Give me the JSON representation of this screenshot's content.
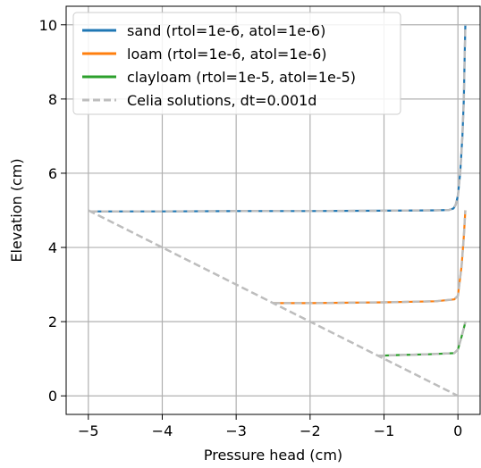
{
  "chart_data": {
    "type": "line",
    "xlabel": "Pressure head (cm)",
    "ylabel": "Elevation (cm)",
    "xlim": [
      -5.3,
      0.3
    ],
    "ylim": [
      -0.5,
      10.5
    ],
    "xticks": [
      -5,
      -4,
      -3,
      -2,
      -1,
      0
    ],
    "yticks": [
      0,
      2,
      4,
      6,
      8,
      10
    ],
    "xtick_labels": [
      "−5",
      "−4",
      "−3",
      "−2",
      "−1",
      "0"
    ],
    "ytick_labels": [
      "0",
      "2",
      "4",
      "6",
      "8",
      "10"
    ],
    "grid": true,
    "legend_position": "top-left",
    "series": [
      {
        "name": "sand (rtol=1e-6, atol=1e-6)",
        "color": "#1f77b4",
        "style": "solid",
        "x": [
          -4.97,
          -4.0,
          -3.0,
          -2.0,
          -1.0,
          -0.3,
          -0.12,
          -0.06,
          -0.03,
          0.0,
          0.03,
          0.06,
          0.08,
          0.09,
          0.1
        ],
        "y": [
          4.97,
          4.97,
          4.98,
          4.98,
          4.99,
          5.0,
          5.01,
          5.05,
          5.15,
          5.4,
          6.0,
          7.0,
          8.0,
          9.0,
          10.0
        ]
      },
      {
        "name": "loam (rtol=1e-6, atol=1e-6)",
        "color": "#ff7f0e",
        "style": "solid",
        "x": [
          -2.5,
          -2.0,
          -1.0,
          -0.3,
          -0.05,
          0.0,
          0.05,
          0.08,
          0.1
        ],
        "y": [
          2.5,
          2.5,
          2.52,
          2.55,
          2.6,
          2.7,
          3.5,
          4.3,
          5.0
        ]
      },
      {
        "name": "clayloam (rtol=1e-5, atol=1e-5)",
        "color": "#2ca02c",
        "style": "solid",
        "x": [
          -1.08,
          -0.8,
          -0.4,
          -0.05,
          0.0,
          0.05,
          0.09,
          0.1
        ],
        "y": [
          1.08,
          1.1,
          1.12,
          1.15,
          1.25,
          1.6,
          1.9,
          2.0
        ]
      },
      {
        "name": "Celia solutions, dt=0.001d",
        "color": "#bdbdbd",
        "style": "dashed",
        "segments": [
          {
            "x": [
              -4.97,
              -4.0,
              -3.0,
              -2.0,
              -1.0,
              -0.3,
              -0.12,
              -0.06,
              -0.03,
              0.0,
              0.03,
              0.06,
              0.08,
              0.09,
              0.1
            ],
            "y": [
              4.97,
              4.97,
              4.98,
              4.98,
              4.99,
              5.0,
              5.01,
              5.05,
              5.15,
              5.4,
              6.0,
              7.0,
              8.0,
              9.0,
              10.0
            ]
          },
          {
            "x": [
              -2.5,
              -2.0,
              -1.0,
              -0.3,
              -0.05,
              0.0,
              0.05,
              0.08,
              0.1
            ],
            "y": [
              2.5,
              2.5,
              2.52,
              2.55,
              2.6,
              2.7,
              3.5,
              4.3,
              5.0
            ]
          },
          {
            "x": [
              -1.08,
              -0.8,
              -0.4,
              -0.05,
              0.0,
              0.05,
              0.09,
              0.1
            ],
            "y": [
              1.08,
              1.1,
              1.12,
              1.15,
              1.25,
              1.6,
              1.9,
              2.0
            ]
          },
          {
            "x": [
              -5.0,
              0.0
            ],
            "y": [
              5.0,
              0.0
            ]
          }
        ]
      }
    ]
  }
}
